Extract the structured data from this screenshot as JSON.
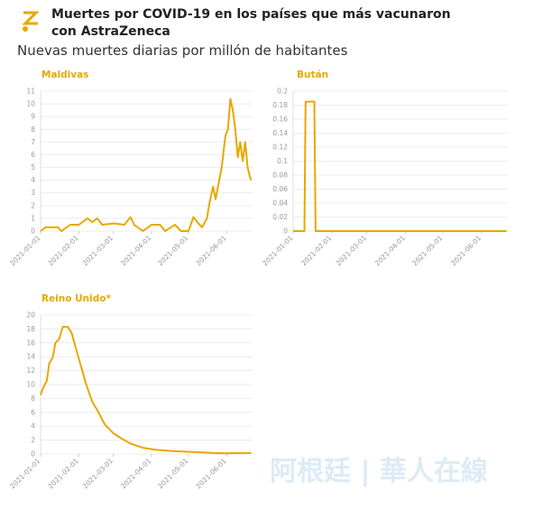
{
  "title": "Muertes por COVID-19 en los países que más vacunaron con AstraZeneca",
  "subtitle": "Nuevas muertes diarias por millón de habitantes",
  "watermark": "阿根廷 | 華人在線",
  "chart_data": [
    {
      "type": "line",
      "title": "Maldivas",
      "color": "#e6a800",
      "grid": true,
      "x": [
        "2021-01-01",
        "2021-01-05",
        "2021-01-15",
        "2021-01-18",
        "2021-01-25",
        "2021-02-01",
        "2021-02-08",
        "2021-02-12",
        "2021-02-16",
        "2021-02-20",
        "2021-03-01",
        "2021-03-10",
        "2021-03-15",
        "2021-03-18",
        "2021-03-25",
        "2021-04-01",
        "2021-04-08",
        "2021-04-12",
        "2021-04-20",
        "2021-04-25",
        "2021-05-01",
        "2021-05-05",
        "2021-05-10",
        "2021-05-12",
        "2021-05-16",
        "2021-05-18",
        "2021-05-21",
        "2021-05-23",
        "2021-05-25",
        "2021-05-28",
        "2021-05-31",
        "2021-06-02",
        "2021-06-04",
        "2021-06-06",
        "2021-06-08",
        "2021-06-10",
        "2021-06-12",
        "2021-06-14",
        "2021-06-16",
        "2021-06-18",
        "2021-06-20",
        "2021-06-21"
      ],
      "values": [
        0,
        0.3,
        0.3,
        0,
        0.5,
        0.5,
        1,
        0.7,
        1,
        0.5,
        0.6,
        0.5,
        1.1,
        0.5,
        0,
        0.5,
        0.5,
        0,
        0.5,
        0,
        0,
        1.1,
        0.5,
        0.3,
        1,
        2.2,
        3.5,
        2.5,
        3.5,
        5,
        7.5,
        8,
        10.4,
        9.5,
        8,
        5.8,
        7,
        5.5,
        7,
        5,
        4.2,
        4
      ],
      "xlim": [
        "2021-01-01",
        "2021-06-22"
      ],
      "xticks": [
        "2021-01-01",
        "2021-02-01",
        "2021-03-01",
        "2021-04-01",
        "2021-05-01",
        "2021-06-01"
      ],
      "ylim": [
        0,
        11
      ],
      "yticks": [
        0,
        1,
        2,
        3,
        4,
        5,
        6,
        7,
        8,
        9,
        10,
        11
      ]
    },
    {
      "type": "line",
      "title": "Bután",
      "color": "#e6a800",
      "grid": true,
      "x": [
        "2021-01-01",
        "2021-01-10",
        "2021-01-11",
        "2021-01-18",
        "2021-01-19",
        "2021-06-21"
      ],
      "values": [
        0,
        0,
        0.185,
        0.185,
        0,
        0
      ],
      "xlim": [
        "2021-01-01",
        "2021-06-22"
      ],
      "xticks": [
        "2021-01-01",
        "2021-02-01",
        "2021-03-01",
        "2021-04-01",
        "2021-05-01",
        "2021-06-01"
      ],
      "ylim": [
        0,
        0.2
      ],
      "yticks": [
        0,
        0.02,
        0.04,
        0.06,
        0.08,
        0.1,
        0.12,
        0.14,
        0.16,
        0.18,
        0.2
      ]
    },
    {
      "type": "line",
      "title": "Reino Unido*",
      "color": "#e6a800",
      "grid": true,
      "x": [
        "2021-01-01",
        "2021-01-03",
        "2021-01-06",
        "2021-01-08",
        "2021-01-11",
        "2021-01-13",
        "2021-01-16",
        "2021-01-19",
        "2021-01-23",
        "2021-01-26",
        "2021-01-30",
        "2021-02-03",
        "2021-02-07",
        "2021-02-12",
        "2021-02-17",
        "2021-02-22",
        "2021-03-01",
        "2021-03-08",
        "2021-03-15",
        "2021-03-25",
        "2021-04-05",
        "2021-04-20",
        "2021-05-05",
        "2021-05-20",
        "2021-06-01",
        "2021-06-21"
      ],
      "values": [
        8.5,
        9.5,
        10.5,
        13,
        14,
        16,
        16.5,
        18.3,
        18.3,
        17.5,
        15,
        12.5,
        10,
        7.5,
        6,
        4.3,
        3,
        2.2,
        1.5,
        0.9,
        0.6,
        0.4,
        0.3,
        0.15,
        0.1,
        0.15
      ],
      "xlim": [
        "2021-01-01",
        "2021-06-22"
      ],
      "xticks": [
        "2021-01-01",
        "2021-02-01",
        "2021-03-01",
        "2021-04-01",
        "2021-05-01",
        "2021-06-01"
      ],
      "ylim": [
        0,
        20
      ],
      "yticks": [
        0,
        2,
        4,
        6,
        8,
        10,
        12,
        14,
        16,
        18,
        20
      ]
    }
  ]
}
